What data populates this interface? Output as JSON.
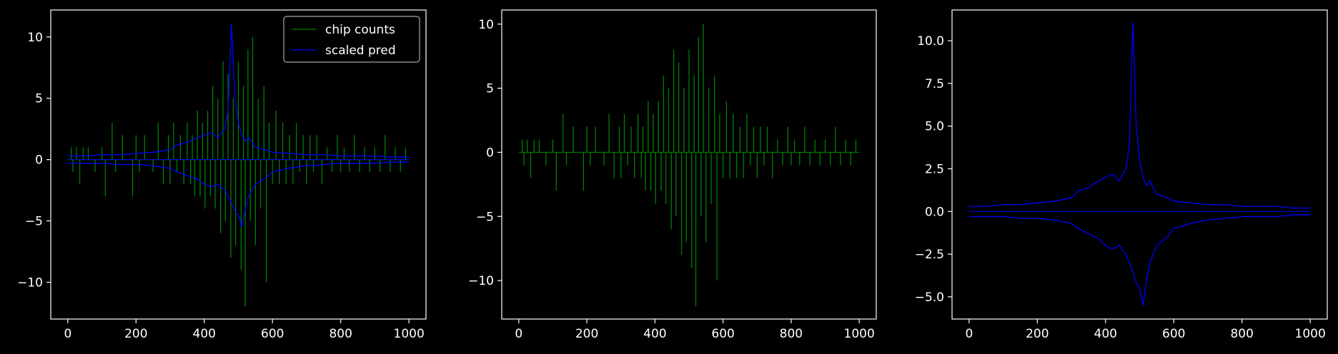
{
  "figure": {
    "background": "#000000",
    "foreground": "#ffffff"
  },
  "chart_data": [
    {
      "type": "line",
      "title": "",
      "xlabel": "",
      "ylabel": "",
      "xlim": [
        -50,
        1050
      ],
      "ylim": [
        -13,
        12.2
      ],
      "xticks": [
        0,
        200,
        400,
        600,
        800,
        1000
      ],
      "yticks": [
        -10,
        -5,
        0,
        5,
        10
      ],
      "xtick_labels": [
        "0",
        "200",
        "400",
        "600",
        "800",
        "1000"
      ],
      "ytick_labels": [
        "−10",
        "−5",
        "0",
        "5",
        "10"
      ],
      "grid": false,
      "legend": {
        "placement": "top-right",
        "entries": [
          {
            "name": "chip counts",
            "color": "#008000"
          },
          {
            "name": "scaled pred",
            "color": "#0000ff"
          }
        ]
      },
      "series": [
        {
          "name": "chip counts",
          "color": "#008000",
          "kind": "spikes",
          "x": [
            10,
            15,
            25,
            35,
            45,
            60,
            80,
            100,
            110,
            130,
            140,
            160,
            190,
            200,
            210,
            225,
            250,
            265,
            280,
            295,
            300,
            310,
            320,
            330,
            340,
            350,
            360,
            365,
            372,
            380,
            388,
            395,
            402,
            410,
            418,
            425,
            432,
            440,
            448,
            455,
            462,
            470,
            478,
            485,
            492,
            500,
            508,
            515,
            520,
            528,
            535,
            542,
            550,
            558,
            565,
            575,
            582,
            590,
            600,
            610,
            620,
            630,
            640,
            650,
            660,
            670,
            680,
            690,
            700,
            710,
            720,
            730,
            745,
            760,
            775,
            790,
            800,
            810,
            825,
            840,
            855,
            870,
            885,
            900,
            915,
            930,
            945,
            960,
            975,
            990
          ],
          "values": [
            1,
            -1,
            1,
            -2,
            1,
            1,
            -1,
            1,
            -3,
            3,
            -1,
            2,
            -3,
            2,
            -1,
            2,
            -1,
            3,
            -2,
            2,
            -2,
            3,
            -1,
            2,
            -2,
            3,
            -2,
            2,
            -3,
            4,
            -3,
            3,
            -4,
            4,
            -3,
            6,
            -4,
            5,
            -6,
            8,
            -5,
            7,
            -8,
            5,
            -7,
            8,
            -9,
            6,
            -12,
            9,
            -5,
            10,
            -7,
            5,
            -4,
            6,
            -10,
            3,
            -2,
            4,
            -2,
            3,
            -2,
            2,
            -2,
            3,
            -1,
            2,
            -2,
            2,
            -1,
            2,
            -2,
            1,
            -1,
            2,
            -1,
            1,
            -1,
            2,
            -1,
            1,
            -1,
            1,
            -1,
            2,
            -1,
            1,
            -1,
            1
          ]
        },
        {
          "name": "scaled pred",
          "color": "#0000ff",
          "kind": "envelope",
          "x": [
            0,
            50,
            100,
            150,
            200,
            250,
            300,
            320,
            350,
            380,
            400,
            420,
            440,
            460,
            470,
            480,
            490,
            500,
            510,
            520,
            530,
            550,
            580,
            600,
            650,
            700,
            750,
            800,
            850,
            900,
            950,
            1000
          ],
          "upper": [
            0.3,
            0.3,
            0.4,
            0.4,
            0.5,
            0.6,
            0.8,
            1.2,
            1.4,
            1.8,
            2.0,
            2.2,
            1.8,
            2.5,
            4.0,
            11.1,
            5.0,
            3.0,
            2.0,
            1.5,
            1.8,
            1.0,
            0.8,
            0.6,
            0.5,
            0.4,
            0.4,
            0.3,
            0.3,
            0.3,
            0.2,
            0.2
          ],
          "lower": [
            -0.3,
            -0.3,
            -0.3,
            -0.4,
            -0.4,
            -0.5,
            -0.7,
            -1.0,
            -1.3,
            -1.6,
            -2.0,
            -2.2,
            -2.0,
            -2.5,
            -3.0,
            -3.5,
            -4.2,
            -4.5,
            -5.5,
            -4.0,
            -3.0,
            -2.0,
            -1.5,
            -1.0,
            -0.7,
            -0.5,
            -0.4,
            -0.3,
            -0.3,
            -0.3,
            -0.2,
            -0.2
          ]
        }
      ]
    },
    {
      "type": "line",
      "title": "",
      "xlabel": "",
      "ylabel": "",
      "xlim": [
        -50,
        1050
      ],
      "ylim": [
        -13,
        11.1
      ],
      "xticks": [
        0,
        200,
        400,
        600,
        800,
        1000
      ],
      "yticks": [
        -10,
        -5,
        0,
        5,
        10
      ],
      "xtick_labels": [
        "0",
        "200",
        "400",
        "600",
        "800",
        "1000"
      ],
      "ytick_labels": [
        "−10",
        "−5",
        "0",
        "5",
        "10"
      ],
      "grid": false,
      "series": [
        {
          "name": "",
          "color": "#008000",
          "kind": "spikes",
          "x": [
            10,
            15,
            25,
            35,
            45,
            60,
            80,
            100,
            110,
            130,
            140,
            160,
            190,
            200,
            210,
            225,
            250,
            265,
            280,
            295,
            300,
            310,
            320,
            330,
            340,
            350,
            360,
            365,
            372,
            380,
            388,
            395,
            402,
            410,
            418,
            425,
            432,
            440,
            448,
            455,
            462,
            470,
            478,
            485,
            492,
            500,
            508,
            515,
            520,
            528,
            535,
            542,
            550,
            558,
            565,
            575,
            582,
            590,
            600,
            610,
            620,
            630,
            640,
            650,
            660,
            670,
            680,
            690,
            700,
            710,
            720,
            730,
            745,
            760,
            775,
            790,
            800,
            810,
            825,
            840,
            855,
            870,
            885,
            900,
            915,
            930,
            945,
            960,
            975,
            990
          ],
          "values": [
            1,
            -1,
            1,
            -2,
            1,
            1,
            -1,
            1,
            -3,
            3,
            -1,
            2,
            -3,
            2,
            -1,
            2,
            -1,
            3,
            -2,
            2,
            -2,
            3,
            -1,
            2,
            -2,
            3,
            -2,
            2,
            -3,
            4,
            -3,
            3,
            -4,
            4,
            -3,
            6,
            -4,
            5,
            -6,
            8,
            -5,
            7,
            -8,
            5,
            -7,
            8,
            -9,
            6,
            -12,
            9,
            -5,
            10,
            -7,
            5,
            -4,
            6,
            -10,
            3,
            -2,
            4,
            -2,
            3,
            -2,
            2,
            -2,
            3,
            -1,
            2,
            -2,
            2,
            -1,
            2,
            -2,
            1,
            -1,
            2,
            -1,
            1,
            -1,
            2,
            -1,
            1,
            -1,
            1,
            -1,
            2,
            -1,
            1,
            -1,
            1
          ]
        }
      ]
    },
    {
      "type": "line",
      "title": "",
      "xlabel": "",
      "ylabel": "",
      "xlim": [
        -50,
        1050
      ],
      "ylim": [
        -6.3,
        11.8
      ],
      "xticks": [
        0,
        200,
        400,
        600,
        800,
        1000
      ],
      "yticks": [
        -5.0,
        -2.5,
        0.0,
        2.5,
        5.0,
        7.5,
        10.0
      ],
      "xtick_labels": [
        "0",
        "200",
        "400",
        "600",
        "800",
        "1000"
      ],
      "ytick_labels": [
        "−5.0",
        "−2.5",
        "0.0",
        "2.5",
        "5.0",
        "7.5",
        "10.0"
      ],
      "grid": false,
      "series": [
        {
          "name": "",
          "color": "#0000ff",
          "kind": "envelope",
          "x": [
            0,
            50,
            100,
            150,
            200,
            250,
            300,
            320,
            350,
            380,
            400,
            420,
            440,
            460,
            470,
            480,
            490,
            500,
            510,
            520,
            530,
            550,
            580,
            600,
            650,
            700,
            750,
            800,
            850,
            900,
            950,
            1000
          ],
          "upper": [
            0.3,
            0.3,
            0.4,
            0.4,
            0.5,
            0.6,
            0.8,
            1.2,
            1.4,
            1.8,
            2.0,
            2.2,
            1.8,
            2.5,
            4.0,
            11.1,
            5.0,
            3.0,
            2.0,
            1.5,
            1.8,
            1.0,
            0.8,
            0.6,
            0.5,
            0.4,
            0.4,
            0.3,
            0.3,
            0.3,
            0.2,
            0.2
          ],
          "lower": [
            -0.3,
            -0.3,
            -0.3,
            -0.4,
            -0.4,
            -0.5,
            -0.7,
            -1.0,
            -1.3,
            -1.6,
            -2.0,
            -2.2,
            -2.0,
            -2.5,
            -3.0,
            -3.5,
            -4.2,
            -4.5,
            -5.5,
            -4.0,
            -3.0,
            -2.0,
            -1.5,
            -1.0,
            -0.7,
            -0.5,
            -0.4,
            -0.3,
            -0.3,
            -0.3,
            -0.2,
            -0.2
          ]
        }
      ]
    }
  ]
}
